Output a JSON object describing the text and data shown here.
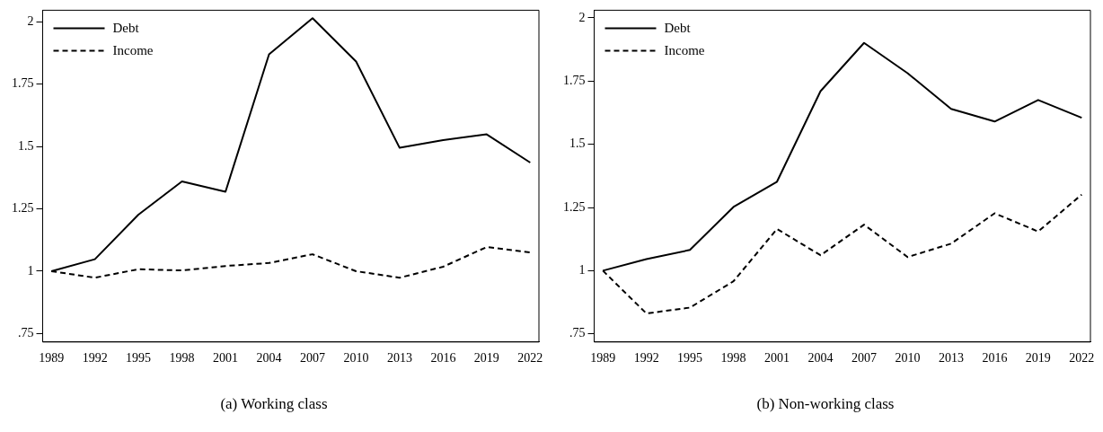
{
  "chart_data": [
    {
      "type": "line",
      "title": "(a) Working class",
      "x": [
        1989,
        1992,
        1995,
        1998,
        2001,
        2004,
        2007,
        2010,
        2013,
        2016,
        2019,
        2022
      ],
      "xlim": [
        1988.4,
        2022.6
      ],
      "xticks": [
        1989,
        1992,
        1995,
        1998,
        2001,
        2004,
        2007,
        2010,
        2013,
        2016,
        2019,
        2022
      ],
      "ylim": [
        0.716,
        2.047
      ],
      "yticks": [
        {
          "value": 0.75,
          "label": ".75"
        },
        1,
        1.25,
        1.5,
        1.75,
        2
      ],
      "grid": false,
      "legend": "top left",
      "marker": "none",
      "series": [
        {
          "name": "Debt",
          "color": "#000000",
          "line_style": "solid",
          "values": [
            1.0,
            1.048,
            1.227,
            1.36,
            1.319,
            1.87,
            2.015,
            1.841,
            1.495,
            1.526,
            1.549,
            1.436
          ]
        },
        {
          "name": "Income",
          "color": "#000000",
          "line_style": "dashed",
          "values": [
            1.0,
            0.974,
            1.008,
            1.003,
            1.021,
            1.033,
            1.068,
            1.0,
            0.974,
            1.018,
            1.097,
            1.075
          ]
        }
      ]
    },
    {
      "type": "line",
      "title": "(b) Non-working class",
      "x": [
        1989,
        1992,
        1995,
        1998,
        2001,
        2004,
        2007,
        2010,
        2013,
        2016,
        2019,
        2022
      ],
      "xlim": [
        1988.4,
        2022.6
      ],
      "xticks": [
        1989,
        1992,
        1995,
        1998,
        2001,
        2004,
        2007,
        2010,
        2013,
        2016,
        2019,
        2022
      ],
      "ylim": [
        0.718,
        2.03
      ],
      "yticks": [
        {
          "value": 0.75,
          "label": ".75"
        },
        1,
        1.25,
        1.5,
        1.75,
        2
      ],
      "grid": false,
      "legend": "top left",
      "marker": "none",
      "series": [
        {
          "name": "Debt",
          "color": "#000000",
          "line_style": "solid",
          "values": [
            1.0,
            1.046,
            1.082,
            1.252,
            1.352,
            1.71,
            1.901,
            1.781,
            1.64,
            1.59,
            1.675,
            1.605
          ]
        },
        {
          "name": "Income",
          "color": "#000000",
          "line_style": "dashed",
          "values": [
            1.0,
            0.831,
            0.854,
            0.958,
            1.165,
            1.061,
            1.182,
            1.054,
            1.107,
            1.227,
            1.155,
            1.301
          ]
        }
      ]
    }
  ]
}
